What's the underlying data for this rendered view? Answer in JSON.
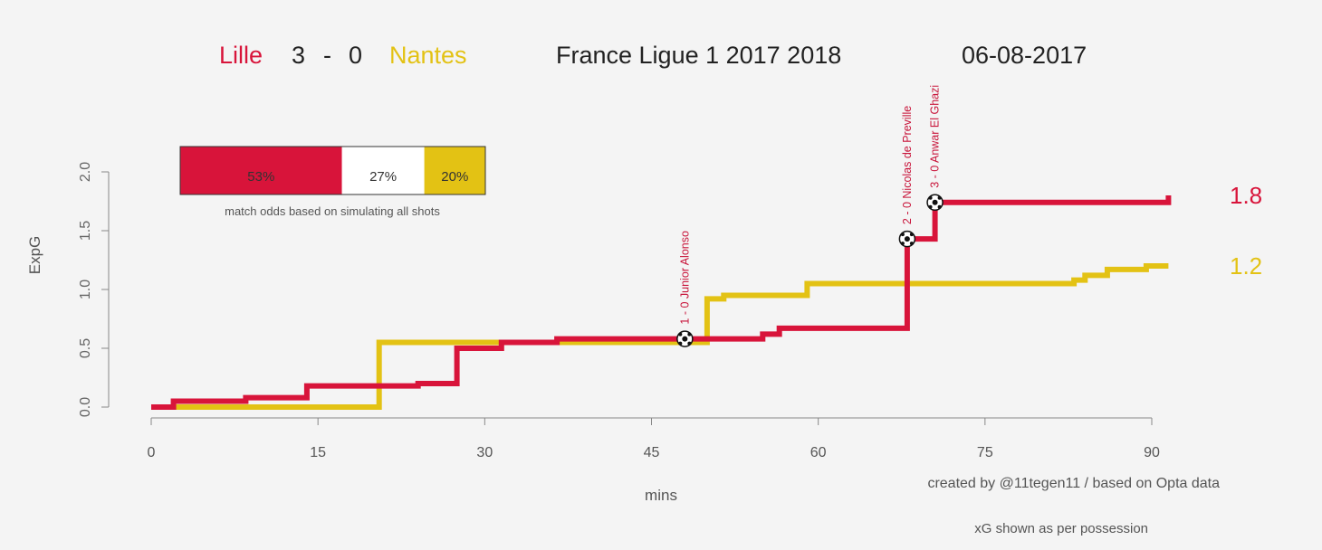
{
  "header": {
    "home_team": "Lille",
    "home_score": "3",
    "separator": "-",
    "away_score": "0",
    "away_team": "Nantes",
    "competition": "France Ligue 1 2017 2018",
    "date": "06-08-2017"
  },
  "odds_box": {
    "home_pct": "53%",
    "draw_pct": "27%",
    "away_pct": "20%",
    "home_value": 53,
    "draw_value": 27,
    "away_value": 20,
    "caption": "match odds based on simulating all shots"
  },
  "credits": {
    "created_by": "created by @11tegen11   /   based on Opta data",
    "note": "xG shown as per possession"
  },
  "colors": {
    "home": "#d8143a",
    "away": "#e3c214",
    "draw": "#ffffff",
    "axis": "#888888",
    "text": "#555555"
  },
  "chart_data": {
    "type": "line",
    "step": true,
    "xlabel": "mins",
    "ylabel": "ExpG",
    "xlim": [
      0,
      92
    ],
    "ylim": [
      0,
      2.0
    ],
    "x_ticks": [
      "0",
      "15",
      "30",
      "45",
      "60",
      "75",
      "90"
    ],
    "x_tick_values": [
      0,
      15,
      30,
      45,
      60,
      75,
      90
    ],
    "y_ticks": [
      "0.0",
      "0.5",
      "1.0",
      "1.5",
      "2.0"
    ],
    "y_tick_values": [
      0,
      0.5,
      1.0,
      1.5,
      2.0
    ],
    "grid": false,
    "series": [
      {
        "name": "Lille",
        "color": "#d8143a",
        "final_label": "1.8",
        "points": [
          [
            0,
            0
          ],
          [
            2,
            0
          ],
          [
            2,
            0.05
          ],
          [
            8.5,
            0.05
          ],
          [
            8.5,
            0.08
          ],
          [
            14,
            0.08
          ],
          [
            14,
            0.18
          ],
          [
            24,
            0.18
          ],
          [
            24,
            0.2
          ],
          [
            27.5,
            0.2
          ],
          [
            27.5,
            0.5
          ],
          [
            31.5,
            0.5
          ],
          [
            31.5,
            0.55
          ],
          [
            36.5,
            0.55
          ],
          [
            36.5,
            0.58
          ],
          [
            55,
            0.58
          ],
          [
            55,
            0.62
          ],
          [
            56.5,
            0.62
          ],
          [
            56.5,
            0.67
          ],
          [
            68,
            0.67
          ],
          [
            68,
            1.43
          ],
          [
            70.5,
            1.43
          ],
          [
            70.5,
            1.74
          ],
          [
            91.5,
            1.74
          ],
          [
            91.5,
            1.8
          ]
        ]
      },
      {
        "name": "Nantes",
        "color": "#e3c214",
        "final_label": "1.2",
        "points": [
          [
            0,
            0
          ],
          [
            20.5,
            0
          ],
          [
            20.5,
            0.55
          ],
          [
            50,
            0.55
          ],
          [
            50,
            0.92
          ],
          [
            51.5,
            0.92
          ],
          [
            51.5,
            0.95
          ],
          [
            59,
            0.95
          ],
          [
            59,
            1.05
          ],
          [
            83,
            1.05
          ],
          [
            83,
            1.08
          ],
          [
            84,
            1.08
          ],
          [
            84,
            1.12
          ],
          [
            86,
            1.12
          ],
          [
            86,
            1.17
          ],
          [
            89.5,
            1.17
          ],
          [
            89.5,
            1.2
          ],
          [
            91.5,
            1.2
          ]
        ]
      }
    ],
    "annotations": [
      {
        "minute": 48,
        "y": 0.58,
        "label": "1 - 0 Junior Alonso"
      },
      {
        "minute": 68,
        "y": 1.43,
        "label": "2 - 0 Nicolas de Preville"
      },
      {
        "minute": 70.5,
        "y": 1.74,
        "label": "3 - 0 Anwar El Ghazi"
      }
    ]
  }
}
